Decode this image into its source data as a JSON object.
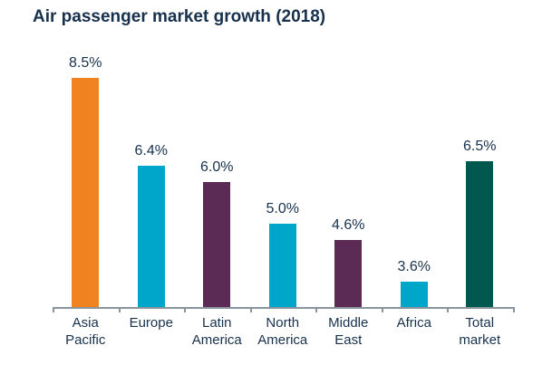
{
  "chart_data": {
    "type": "bar",
    "title": "Air passenger market growth (2018)",
    "categories": [
      "Asia Pacific",
      "Europe",
      "Latin America",
      "North America",
      "Middle East",
      "Africa",
      "Total market"
    ],
    "category_display": [
      "Asia\nPacific",
      "Europe",
      "Latin\nAmerica",
      "North\nAmerica",
      "Middle\nEast",
      "Africa",
      "Total\nmarket"
    ],
    "values": [
      8.5,
      6.4,
      6.0,
      5.0,
      4.6,
      3.6,
      6.5
    ],
    "value_labels": [
      "8.5%",
      "6.4%",
      "6.0%",
      "5.0%",
      "4.6%",
      "3.6%",
      "6.5%"
    ],
    "bar_colors": [
      "#F0831F",
      "#00A6C9",
      "#5C2B55",
      "#00A6C9",
      "#5C2B55",
      "#00A6C9",
      "#00584F"
    ],
    "xlabel": "",
    "ylabel": "",
    "ylim": [
      3,
      9
    ],
    "grid": false,
    "legend": false,
    "axis_color": "#8A949D",
    "text_color": "#17314D",
    "background_color": "#FFFFFF"
  }
}
